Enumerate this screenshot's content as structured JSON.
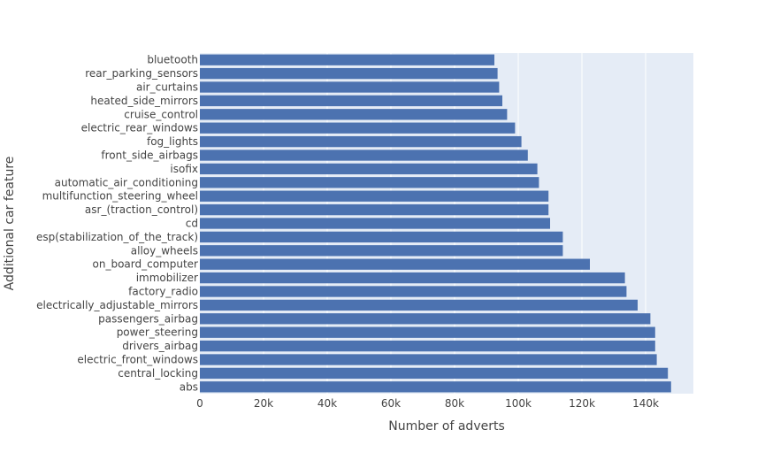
{
  "chart_data": {
    "type": "bar",
    "orientation": "horizontal",
    "title": "",
    "xlabel": "Number of adverts",
    "ylabel": "Additional car feature",
    "xlim": [
      0,
      155000
    ],
    "x_ticks": [
      0,
      20000,
      40000,
      60000,
      80000,
      100000,
      120000,
      140000
    ],
    "x_tick_labels": [
      "0",
      "20k",
      "40k",
      "60k",
      "80k",
      "100k",
      "120k",
      "140k"
    ],
    "grid": true,
    "legend": "none",
    "colors": {
      "bar": "#4c72b0",
      "plot_background": "#e5ecf6",
      "grid": "#ffffff",
      "text": "#444444"
    },
    "categories": [
      "bluetooth",
      "rear_parking_sensors",
      "air_curtains",
      "heated_side_mirrors",
      "cruise_control",
      "electric_rear_windows",
      "fog_lights",
      "front_side_airbags",
      "isofix",
      "automatic_air_conditioning",
      "multifunction_steering_wheel",
      "asr_(traction_control)",
      "cd",
      "esp(stabilization_of_the_track)",
      "alloy_wheels",
      "on_board_computer",
      "immobilizer",
      "factory_radio",
      "electrically_adjustable_mirrors",
      "passengers_airbag",
      "power_steering",
      "drivers_airbag",
      "electric_front_windows",
      "central_locking",
      "abs"
    ],
    "values": [
      92500,
      93500,
      94000,
      95000,
      96500,
      99000,
      101000,
      103000,
      106000,
      106500,
      109500,
      109500,
      110000,
      114000,
      114000,
      122500,
      133500,
      134000,
      137500,
      141500,
      143000,
      143000,
      143500,
      147000,
      148000
    ]
  }
}
